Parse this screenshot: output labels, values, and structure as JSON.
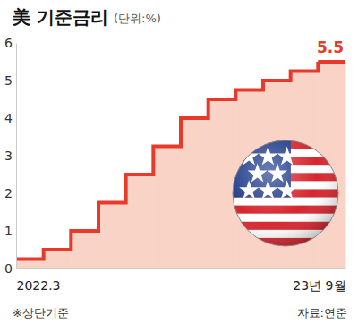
{
  "chart_data": {
    "type": "line",
    "title": "美 기준금리",
    "subtitle": "(단위:%)",
    "categories": [
      "2022.3",
      null,
      null,
      null,
      null,
      null,
      null,
      null,
      null,
      null,
      null,
      "23년 9월"
    ],
    "values": [
      0.25,
      0.5,
      1.0,
      1.75,
      2.5,
      3.25,
      4.0,
      4.5,
      4.75,
      5.0,
      5.25,
      5.5
    ],
    "color": "#e8392b",
    "line_style": "step",
    "ylim": [
      0,
      6
    ],
    "yticks": [
      0,
      1,
      2,
      3,
      4,
      5,
      6
    ],
    "grid": false,
    "annotations": [
      "※상단기준",
      "자료:연준"
    ]
  }
}
